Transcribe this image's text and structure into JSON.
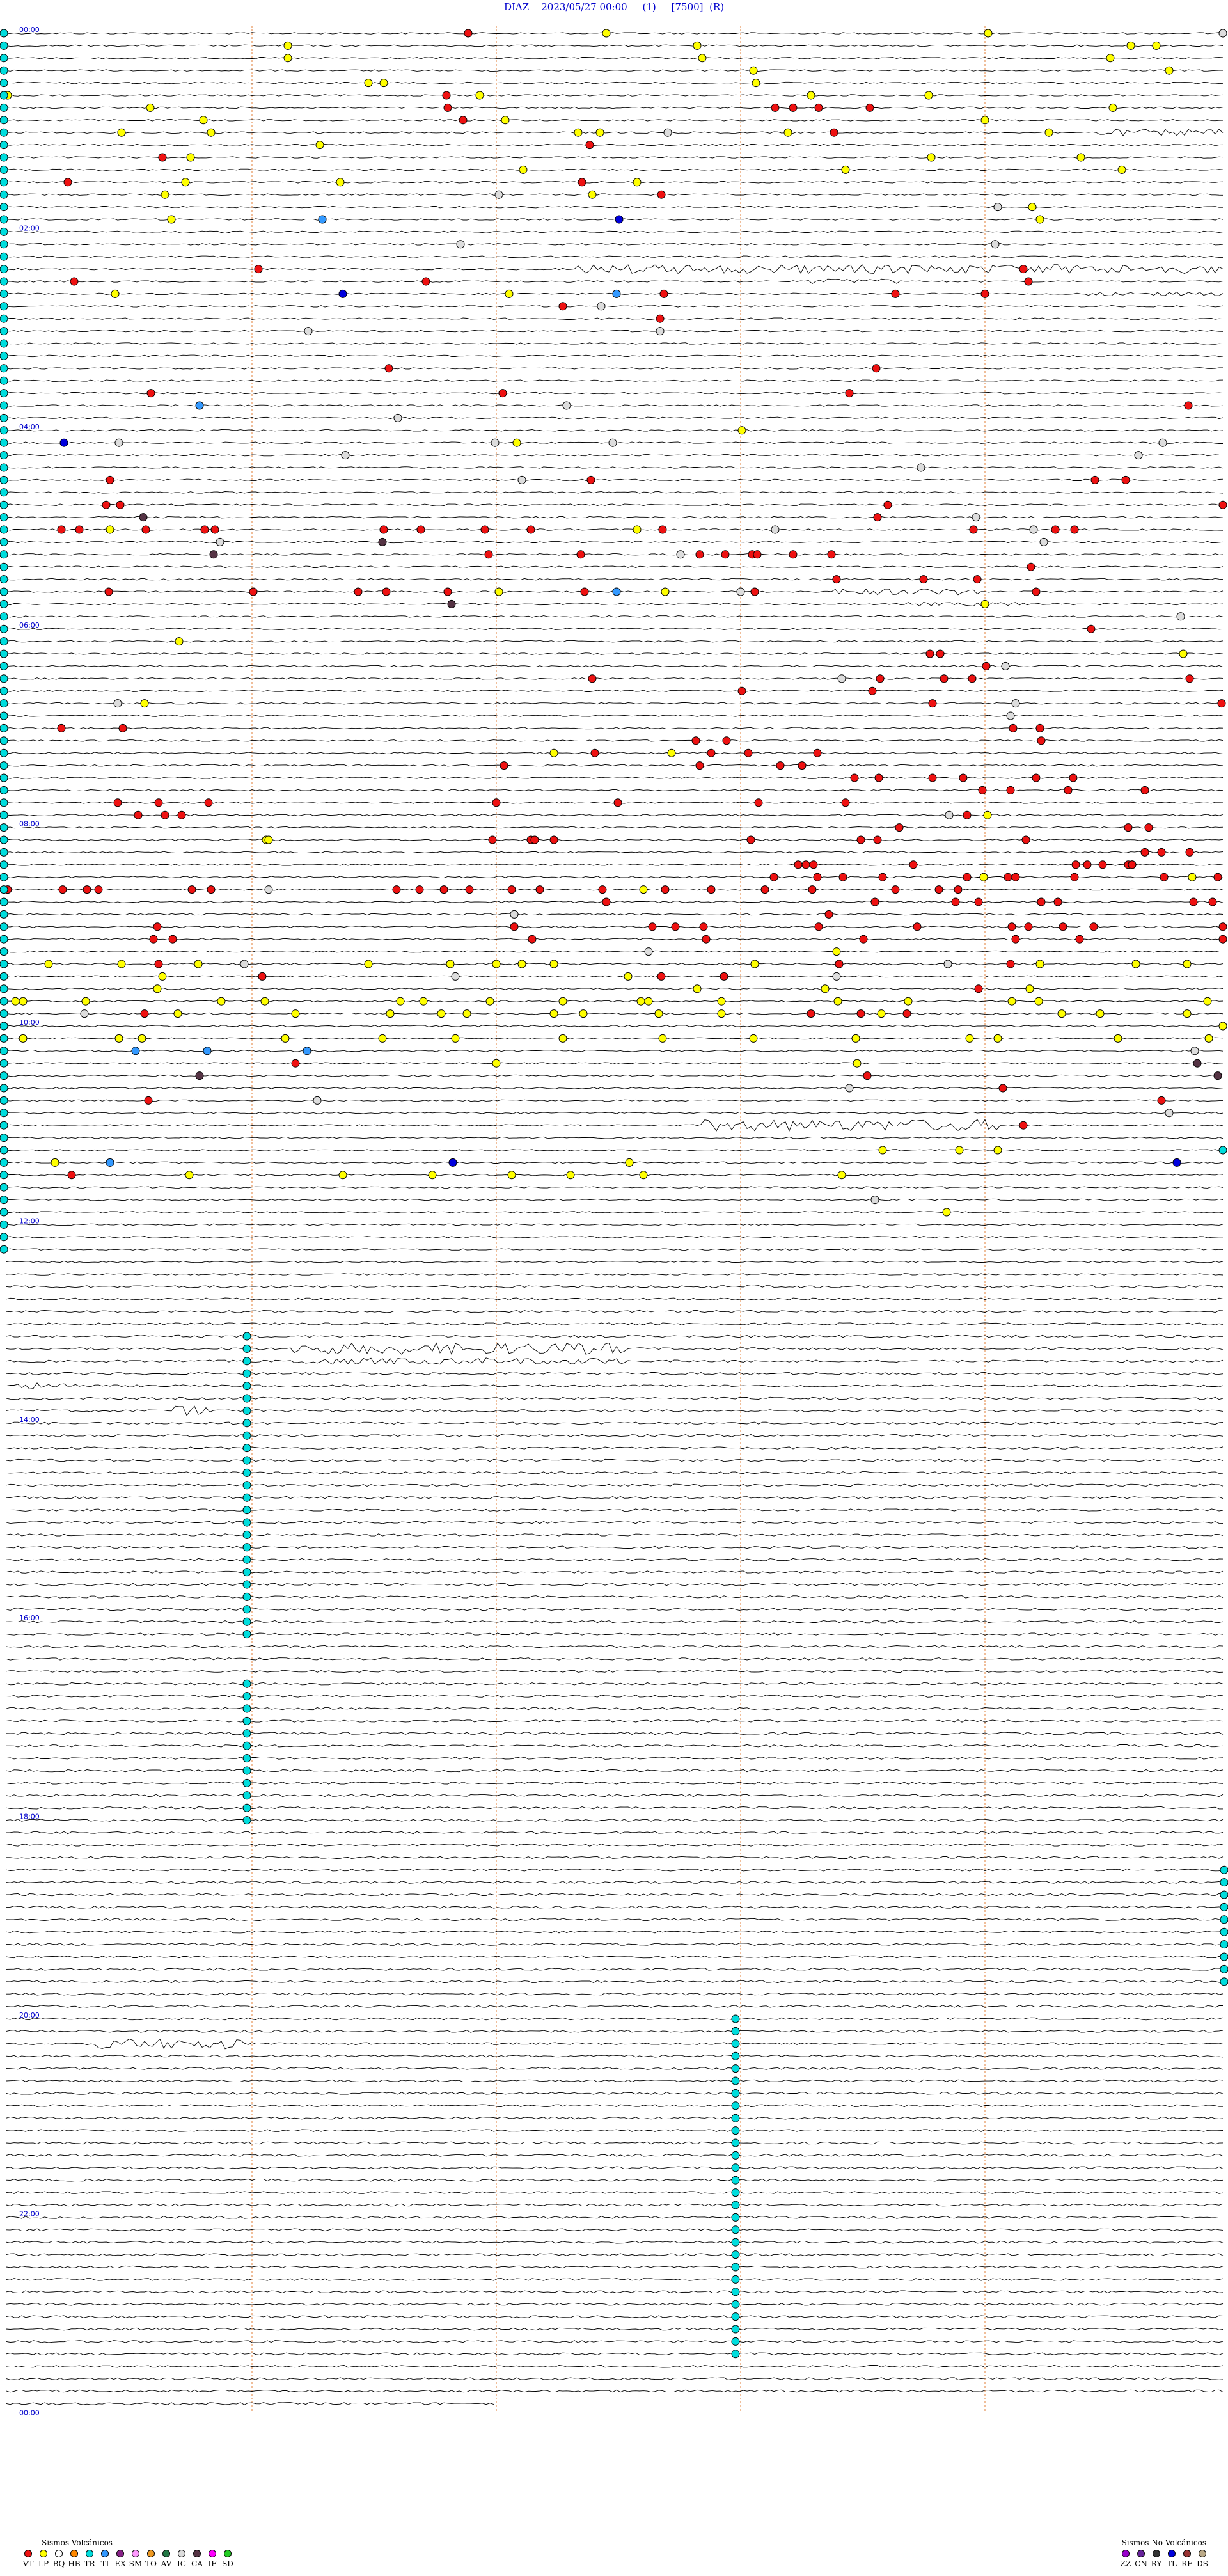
{
  "header": {
    "station": "DIAZ",
    "datetime": "2023/05/27 00:00",
    "channel": "(1)",
    "scale": "[7500]",
    "mode": "(R)"
  },
  "time_labels": [
    "00:00",
    "02:00",
    "04:00",
    "06:00",
    "08:00",
    "10:00",
    "12:00",
    "14:00",
    "16:00",
    "18:00",
    "20:00",
    "22:00",
    "00:00"
  ],
  "colors": {
    "trace": "#000000",
    "time_label": "#0000cc",
    "guide_line": "#e07020",
    "VT": "#ee1111",
    "LP": "#ffff00",
    "BQ": "#ffffff",
    "HB": "#ff8800",
    "TR": "#00dddd",
    "TI": "#3399ff",
    "EX": "#882288",
    "SM": "#ff99ff",
    "TO": "#ee9922",
    "AV": "#227744",
    "IC": "#dddddd",
    "CA": "#553344",
    "IF": "#ff00ff",
    "SD": "#22cc22",
    "ZZ": "#9900cc",
    "CN": "#662299",
    "RY": "#333333",
    "TL": "#0000dd",
    "RE": "#993333",
    "DS": "#bbaa88"
  },
  "legend": {
    "volcanic": {
      "title": "Sismos Volcánicos",
      "items": [
        {
          "code": "VT",
          "color": "#ee1111"
        },
        {
          "code": "LP",
          "color": "#ffff00"
        },
        {
          "code": "BQ",
          "color": "#ffffff"
        },
        {
          "code": "HB",
          "color": "#ff8800"
        },
        {
          "code": "TR",
          "color": "#00dddd"
        },
        {
          "code": "TI",
          "color": "#3399ff"
        },
        {
          "code": "EX",
          "color": "#882288"
        },
        {
          "code": "SM",
          "color": "#ff99ff"
        },
        {
          "code": "TO",
          "color": "#ee9922"
        },
        {
          "code": "AV",
          "color": "#227744"
        },
        {
          "code": "IC",
          "color": "#dddddd"
        },
        {
          "code": "CA",
          "color": "#553344"
        },
        {
          "code": "IF",
          "color": "#ff00ff"
        },
        {
          "code": "SD",
          "color": "#22cc22"
        }
      ]
    },
    "non_volcanic": {
      "title": "Sismos No Volcánicos",
      "items": [
        {
          "code": "ZZ",
          "color": "#9900cc"
        },
        {
          "code": "CN",
          "color": "#662299"
        },
        {
          "code": "RY",
          "color": "#333333"
        },
        {
          "code": "TL",
          "color": "#0000dd"
        },
        {
          "code": "RE",
          "color": "#993333"
        },
        {
          "code": "DS",
          "color": "#bbaa88"
        }
      ]
    }
  }
}
